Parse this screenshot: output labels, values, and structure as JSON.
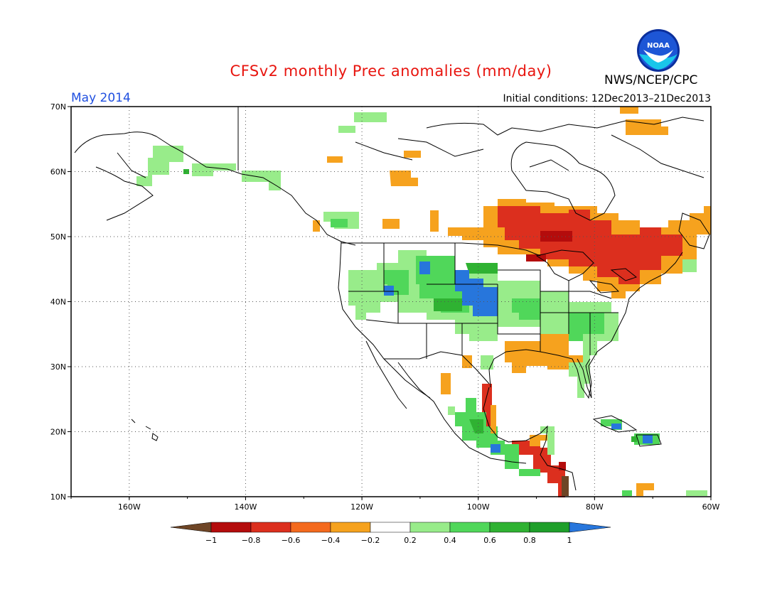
{
  "header": {
    "title": "CFSv2 monthly Prec anomalies (mm/day)",
    "period": "May 2014",
    "initial_conditions": "Initial conditions: 12Dec2013–21Dec2013",
    "agency": "NWS/NCEP/CPC",
    "logo_text": "NOAA"
  },
  "map": {
    "lon_range": [
      -170,
      -60
    ],
    "lat_range": [
      10,
      70
    ],
    "lat_ticks": [
      "70N",
      "60N",
      "50N",
      "40N",
      "30N",
      "20N",
      "10N"
    ],
    "lon_ticks": [
      "160W",
      "140W",
      "120W",
      "100W",
      "80W",
      "60W"
    ],
    "anomaly_regions": [
      {
        "name": "great-lakes-dry",
        "level": -0.5
      },
      {
        "name": "northeast-dry",
        "level": -0.5
      },
      {
        "name": "gulf-coast-dry",
        "level": -0.3
      },
      {
        "name": "central-plains-wet",
        "level": 1.0
      },
      {
        "name": "western-us-wet",
        "level": 0.5
      },
      {
        "name": "alaska-wet",
        "level": 0.3
      },
      {
        "name": "mexico-wet",
        "level": 0.6
      },
      {
        "name": "central-america-dry",
        "level": -0.6
      }
    ]
  },
  "legend": {
    "labels": [
      "−1",
      "−0.8",
      "−0.6",
      "−0.4",
      "−0.2",
      "0.2",
      "0.4",
      "0.6",
      "0.8",
      "1"
    ],
    "colors": [
      "#6e4526",
      "#b40c0c",
      "#dc2f1e",
      "#f46a1e",
      "#f6a21e",
      "#ffffff",
      "#98ec8a",
      "#50d75a",
      "#2fb232",
      "#1f9f2a",
      "#2776dc"
    ]
  }
}
